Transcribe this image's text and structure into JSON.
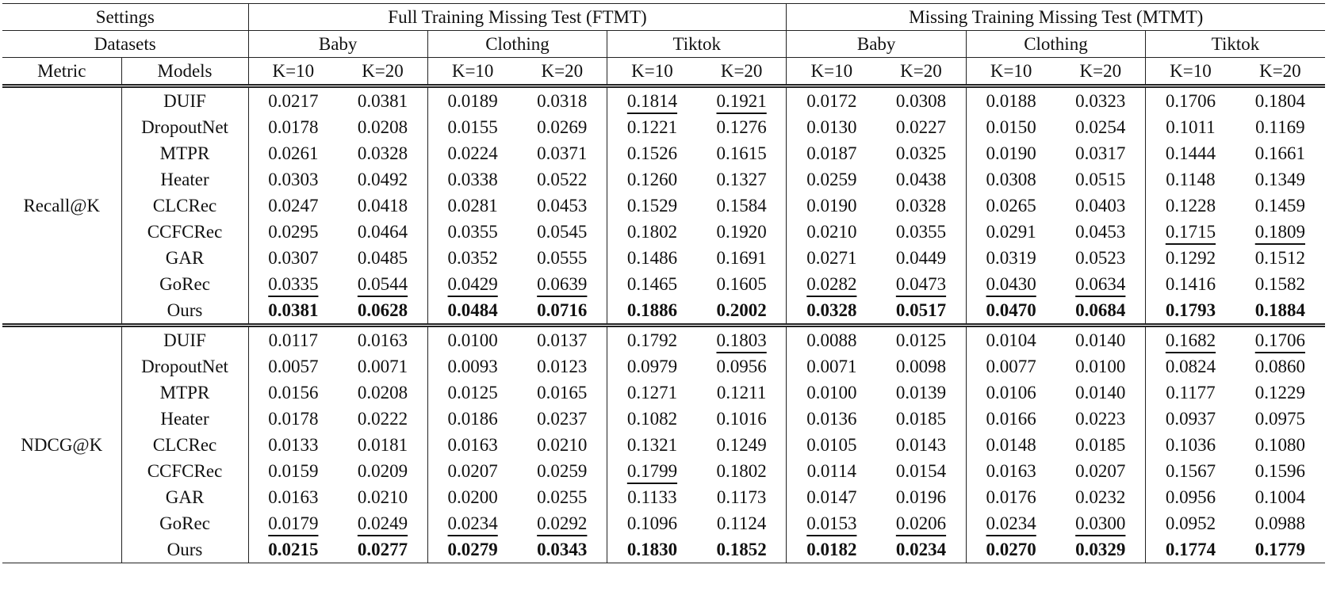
{
  "header": {
    "settings_label": "Settings",
    "datasets_label": "Datasets",
    "metric_label": "Metric",
    "models_label": "Models",
    "settings": [
      {
        "name": "Full Training Missing Test (FTMT)",
        "datasets": [
          "Baby",
          "Clothing",
          "Tiktok"
        ]
      },
      {
        "name": "Missing Training Missing Test (MTMT)",
        "datasets": [
          "Baby",
          "Clothing",
          "Tiktok"
        ]
      }
    ],
    "k": [
      "K=10",
      "K=20",
      "K=10",
      "K=20",
      "K=10",
      "K=20",
      "K=10",
      "K=20",
      "K=10",
      "K=20",
      "K=10",
      "K=20"
    ]
  },
  "table": {
    "groups": [
      {
        "metric": "Recall@K",
        "rows": [
          {
            "model": "DUIF",
            "cells": [
              "0.0217",
              "0.0381",
              "0.0189",
              "0.0318",
              "0.1814",
              "0.1921",
              "0.0172",
              "0.0308",
              "0.0188",
              "0.0323",
              "0.1706",
              "0.1804"
            ],
            "underline": [
              4,
              5
            ]
          },
          {
            "model": "DropoutNet",
            "cells": [
              "0.0178",
              "0.0208",
              "0.0155",
              "0.0269",
              "0.1221",
              "0.1276",
              "0.0130",
              "0.0227",
              "0.0150",
              "0.0254",
              "0.1011",
              "0.1169"
            ]
          },
          {
            "model": "MTPR",
            "cells": [
              "0.0261",
              "0.0328",
              "0.0224",
              "0.0371",
              "0.1526",
              "0.1615",
              "0.0187",
              "0.0325",
              "0.0190",
              "0.0317",
              "0.1444",
              "0.1661"
            ]
          },
          {
            "model": "Heater",
            "cells": [
              "0.0303",
              "0.0492",
              "0.0338",
              "0.0522",
              "0.1260",
              "0.1327",
              "0.0259",
              "0.0438",
              "0.0308",
              "0.0515",
              "0.1148",
              "0.1349"
            ]
          },
          {
            "model": "CLCRec",
            "cells": [
              "0.0247",
              "0.0418",
              "0.0281",
              "0.0453",
              "0.1529",
              "0.1584",
              "0.0190",
              "0.0328",
              "0.0265",
              "0.0403",
              "0.1228",
              "0.1459"
            ]
          },
          {
            "model": "CCFCRec",
            "cells": [
              "0.0295",
              "0.0464",
              "0.0355",
              "0.0545",
              "0.1802",
              "0.1920",
              "0.0210",
              "0.0355",
              "0.0291",
              "0.0453",
              "0.1715",
              "0.1809"
            ],
            "underline": [
              10,
              11
            ]
          },
          {
            "model": "GAR",
            "cells": [
              "0.0307",
              "0.0485",
              "0.0352",
              "0.0555",
              "0.1486",
              "0.1691",
              "0.0271",
              "0.0449",
              "0.0319",
              "0.0523",
              "0.1292",
              "0.1512"
            ]
          },
          {
            "model": "GoRec",
            "cells": [
              "0.0335",
              "0.0544",
              "0.0429",
              "0.0639",
              "0.1465",
              "0.1605",
              "0.0282",
              "0.0473",
              "0.0430",
              "0.0634",
              "0.1416",
              "0.1582"
            ],
            "underline": [
              0,
              1,
              2,
              3,
              6,
              7,
              8,
              9
            ]
          },
          {
            "model": "Ours",
            "cells": [
              "0.0381",
              "0.0628",
              "0.0484",
              "0.0716",
              "0.1886",
              "0.2002",
              "0.0328",
              "0.0517",
              "0.0470",
              "0.0684",
              "0.1793",
              "0.1884"
            ],
            "bold": true
          }
        ]
      },
      {
        "metric": "NDCG@K",
        "rows": [
          {
            "model": "DUIF",
            "cells": [
              "0.0117",
              "0.0163",
              "0.0100",
              "0.0137",
              "0.1792",
              "0.1803",
              "0.0088",
              "0.0125",
              "0.0104",
              "0.0140",
              "0.1682",
              "0.1706"
            ],
            "underline": [
              5,
              10,
              11
            ]
          },
          {
            "model": "DropoutNet",
            "cells": [
              "0.0057",
              "0.0071",
              "0.0093",
              "0.0123",
              "0.0979",
              "0.0956",
              "0.0071",
              "0.0098",
              "0.0077",
              "0.0100",
              "0.0824",
              "0.0860"
            ]
          },
          {
            "model": "MTPR",
            "cells": [
              "0.0156",
              "0.0208",
              "0.0125",
              "0.0165",
              "0.1271",
              "0.1211",
              "0.0100",
              "0.0139",
              "0.0106",
              "0.0140",
              "0.1177",
              "0.1229"
            ]
          },
          {
            "model": "Heater",
            "cells": [
              "0.0178",
              "0.0222",
              "0.0186",
              "0.0237",
              "0.1082",
              "0.1016",
              "0.0136",
              "0.0185",
              "0.0166",
              "0.0223",
              "0.0937",
              "0.0975"
            ]
          },
          {
            "model": "CLCRec",
            "cells": [
              "0.0133",
              "0.0181",
              "0.0163",
              "0.0210",
              "0.1321",
              "0.1249",
              "0.0105",
              "0.0143",
              "0.0148",
              "0.0185",
              "0.1036",
              "0.1080"
            ]
          },
          {
            "model": "CCFCRec",
            "cells": [
              "0.0159",
              "0.0209",
              "0.0207",
              "0.0259",
              "0.1799",
              "0.1802",
              "0.0114",
              "0.0154",
              "0.0163",
              "0.0207",
              "0.1567",
              "0.1596"
            ],
            "underline": [
              4
            ]
          },
          {
            "model": "GAR",
            "cells": [
              "0.0163",
              "0.0210",
              "0.0200",
              "0.0255",
              "0.1133",
              "0.1173",
              "0.0147",
              "0.0196",
              "0.0176",
              "0.0232",
              "0.0956",
              "0.1004"
            ]
          },
          {
            "model": "GoRec",
            "cells": [
              "0.0179",
              "0.0249",
              "0.0234",
              "0.0292",
              "0.1096",
              "0.1124",
              "0.0153",
              "0.0206",
              "0.0234",
              "0.0300",
              "0.0952",
              "0.0988"
            ],
            "underline": [
              0,
              1,
              2,
              3,
              6,
              7,
              8,
              9
            ]
          },
          {
            "model": "Ours",
            "cells": [
              "0.0215",
              "0.0277",
              "0.0279",
              "0.0343",
              "0.1830",
              "0.1852",
              "0.0182",
              "0.0234",
              "0.0270",
              "0.0329",
              "0.1774",
              "0.1779"
            ],
            "bold": true
          }
        ]
      }
    ]
  }
}
